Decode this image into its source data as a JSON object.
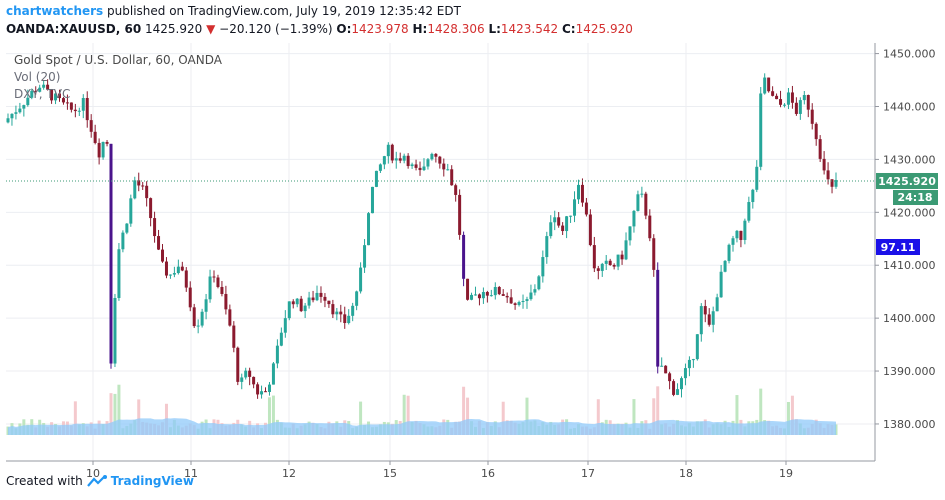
{
  "header": {
    "author": "chartwatchers",
    "published": "published on TradingView.com, July 19, 2019 12:35:42 EDT",
    "symbol": "OANDA:XAUUSD, 60",
    "last": "1425.920",
    "change_arrow": "▼",
    "change": "−20.120 (−1.39%)",
    "o_label": "O:",
    "o_value": "1423.978",
    "h_label": "H:",
    "h_value": "1428.306",
    "l_label": "L:",
    "l_value": "1423.542",
    "c_label": "C:",
    "c_value": "1425.920"
  },
  "footer": {
    "created_with": "Created with",
    "brand": "TradingView"
  },
  "colors": {
    "up": "#26a69a",
    "down": "#8b1a2e",
    "down_deep": "#4a148c",
    "price_tag": "#3b9a74",
    "vol_tag": "#1a10e8",
    "vol_up": "#bfe6c0",
    "vol_down": "#f4c9cd",
    "vol_ma": "#90caf9"
  },
  "chart_data": {
    "type": "candlestick",
    "title": "Gold Spot / U.S. Dollar, 60, OANDA",
    "indicators": [
      "Vol (20)",
      "DXY, TVC"
    ],
    "x_tick_labels": [
      "10",
      "11",
      "12",
      "15",
      "16",
      "17",
      "18",
      "19"
    ],
    "y_tick_labels": [
      "1380.000",
      "1390.000",
      "1400.000",
      "1410.000",
      "1420.000",
      "1430.000",
      "1440.000",
      "1450.000"
    ],
    "ylim": [
      1373,
      1452
    ],
    "last_price_label": "1425.920",
    "countdown_label": "24:18",
    "volume_label": "97.11",
    "path": [
      [
        0,
        1437
      ],
      [
        4,
        1444
      ],
      [
        7,
        1440
      ],
      [
        8,
        1439
      ],
      [
        9,
        1441
      ],
      [
        10,
        1436
      ],
      [
        11,
        1431
      ],
      [
        11.8,
        1436
      ],
      [
        12.2,
        1390
      ],
      [
        13,
        1412
      ],
      [
        14,
        1418
      ],
      [
        15,
        1426
      ],
      [
        16,
        1424
      ],
      [
        17,
        1418
      ],
      [
        18,
        1410
      ],
      [
        19,
        1408
      ],
      [
        20,
        1410
      ],
      [
        21,
        1406
      ],
      [
        22,
        1398
      ],
      [
        23,
        1403
      ],
      [
        24,
        1409
      ],
      [
        25,
        1404
      ],
      [
        26,
        1398
      ],
      [
        27,
        1387
      ],
      [
        28,
        1390
      ],
      [
        29,
        1386
      ],
      [
        30,
        1386
      ],
      [
        31,
        1391
      ],
      [
        32,
        1399
      ],
      [
        33,
        1404
      ],
      [
        34,
        1402
      ],
      [
        35,
        1403
      ],
      [
        36,
        1405
      ],
      [
        37,
        1404
      ],
      [
        38,
        1401
      ],
      [
        39,
        1399
      ],
      [
        40,
        1402
      ],
      [
        41,
        1409
      ],
      [
        42,
        1423
      ],
      [
        43,
        1428
      ],
      [
        44,
        1432
      ],
      [
        45,
        1430
      ],
      [
        46,
        1431
      ],
      [
        47,
        1428
      ],
      [
        48,
        1427
      ],
      [
        49,
        1432
      ],
      [
        50,
        1430
      ],
      [
        51,
        1428
      ],
      [
        52,
        1422
      ],
      [
        53,
        1402
      ],
      [
        54,
        1404
      ],
      [
        55,
        1405
      ],
      [
        56,
        1405
      ],
      [
        57,
        1405
      ],
      [
        58,
        1404
      ],
      [
        59,
        1402
      ],
      [
        60,
        1403
      ],
      [
        61,
        1406
      ],
      [
        62,
        1412
      ],
      [
        63,
        1421
      ],
      [
        64,
        1416
      ],
      [
        65,
        1420
      ],
      [
        66,
        1426
      ],
      [
        67,
        1418
      ],
      [
        67.5,
        1412
      ],
      [
        68,
        1408
      ],
      [
        69,
        1410
      ],
      [
        70,
        1410
      ],
      [
        71,
        1412
      ],
      [
        72,
        1418
      ],
      [
        73,
        1424
      ],
      [
        74,
        1418
      ],
      [
        74.6,
        1408
      ],
      [
        75,
        1390
      ],
      [
        75.5,
        1391
      ],
      [
        76,
        1389
      ],
      [
        77,
        1386
      ],
      [
        78,
        1389
      ],
      [
        79,
        1392
      ],
      [
        80,
        1402
      ],
      [
        81,
        1398
      ],
      [
        82,
        1406
      ],
      [
        83,
        1412
      ],
      [
        84,
        1416
      ],
      [
        84.5,
        1414
      ],
      [
        85,
        1419
      ],
      [
        86,
        1424
      ],
      [
        86.5,
        1430
      ],
      [
        87,
        1446
      ],
      [
        88,
        1442
      ],
      [
        89,
        1440
      ],
      [
        90,
        1442
      ],
      [
        91,
        1439
      ],
      [
        92,
        1442
      ],
      [
        93,
        1436
      ],
      [
        93.5,
        1433
      ],
      [
        94,
        1428
      ],
      [
        95,
        1424
      ],
      [
        95.5,
        1426
      ]
    ]
  }
}
